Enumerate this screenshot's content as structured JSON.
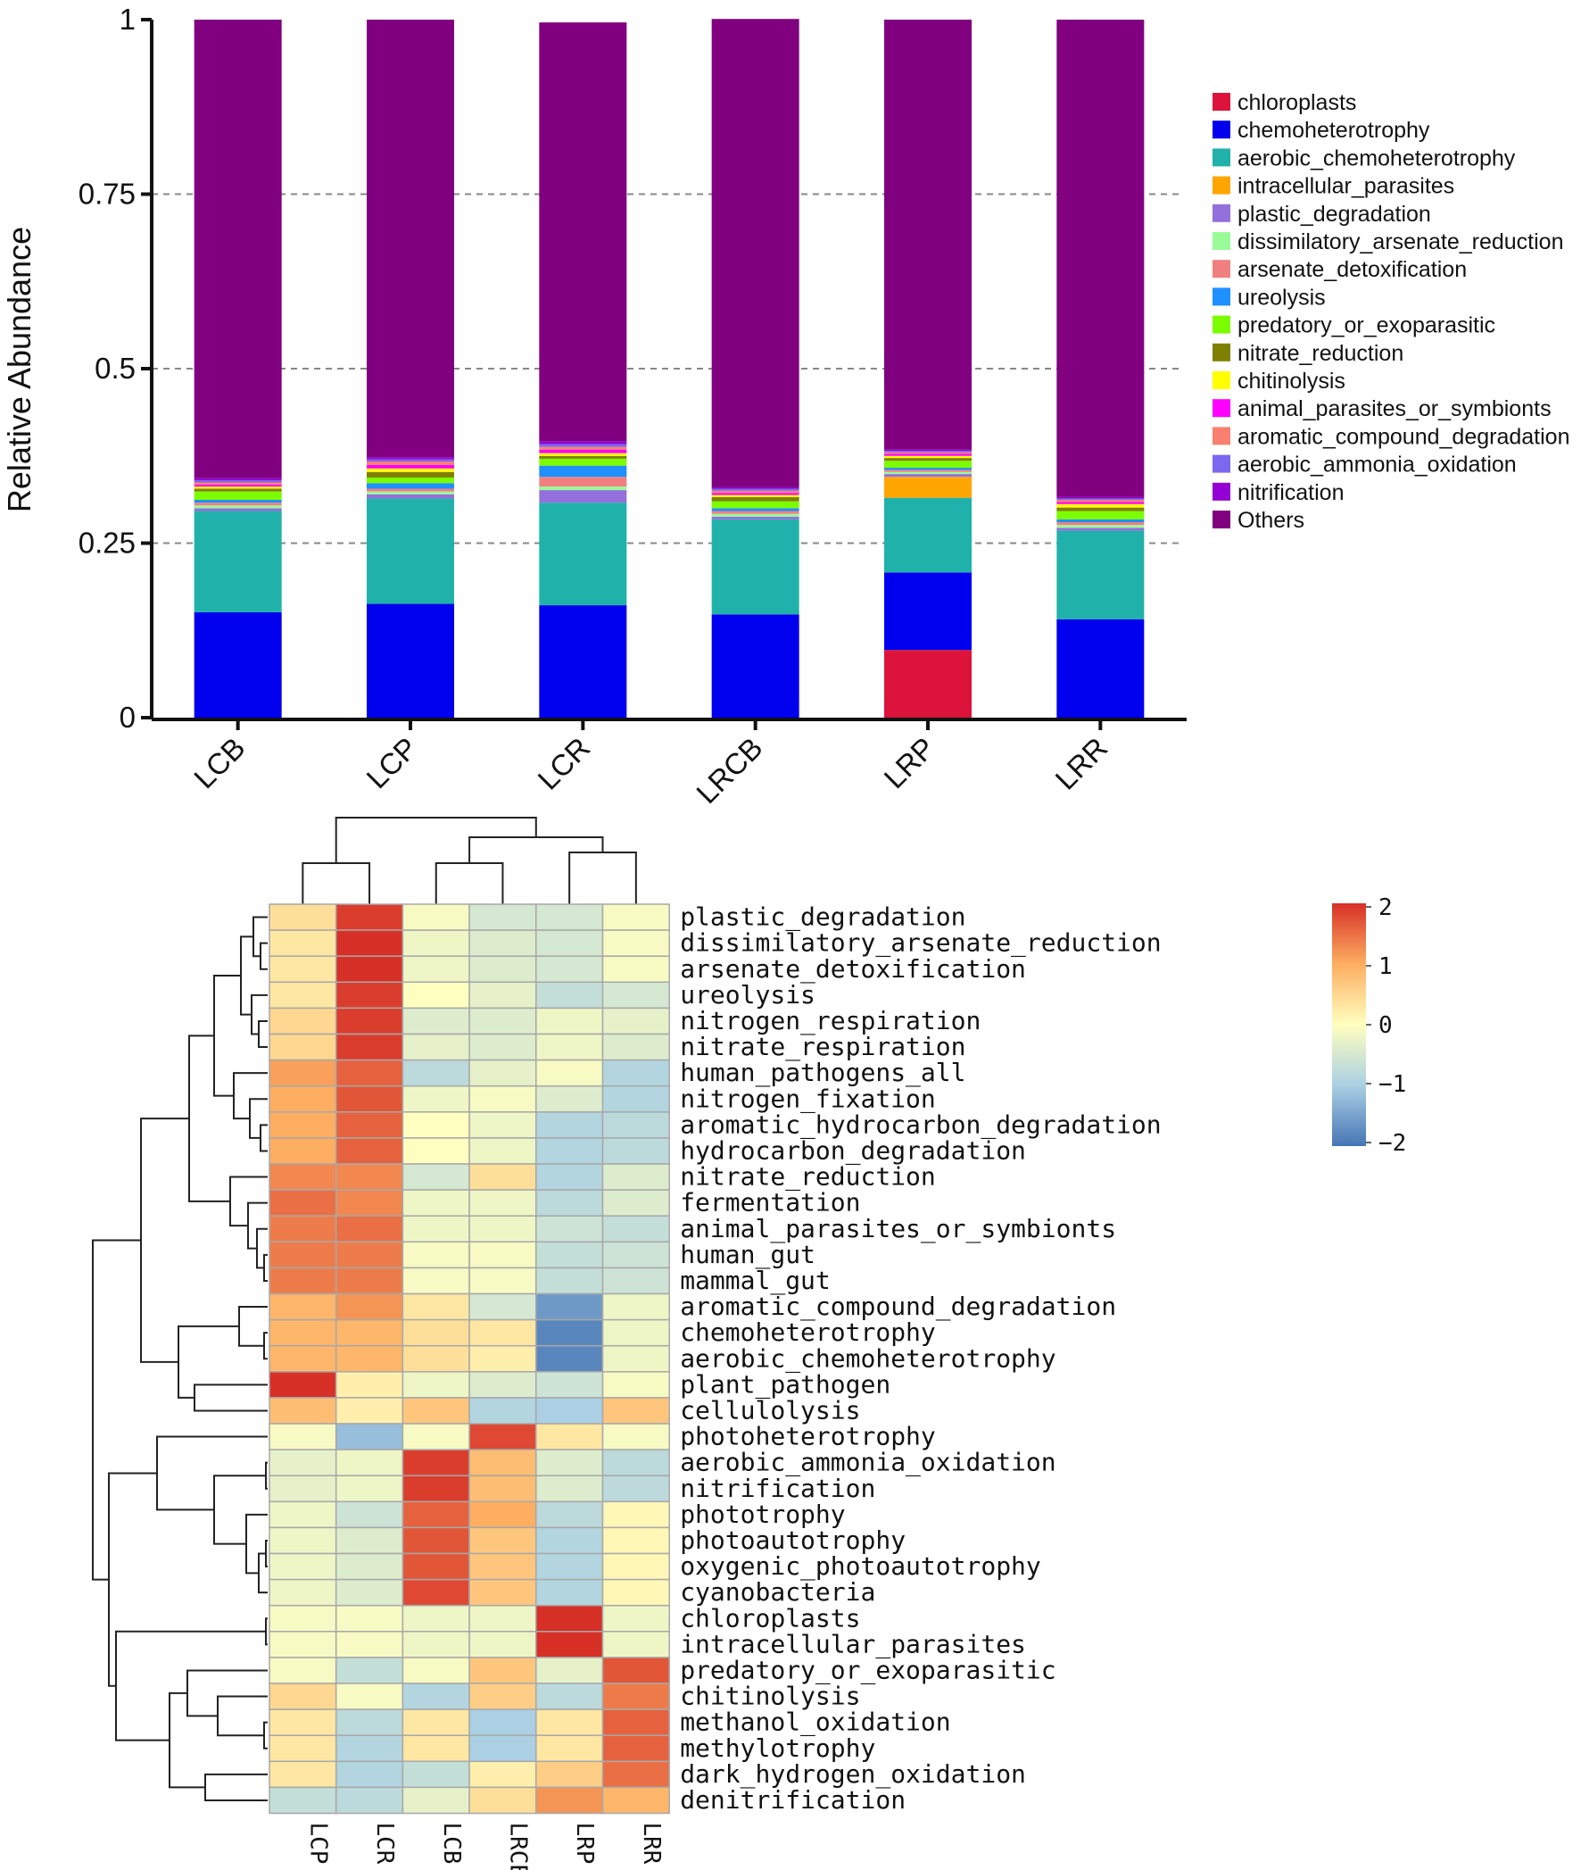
{
  "chart_data": [
    {
      "type": "bar",
      "stacked": true,
      "ylabel": "Relative Abundance",
      "ylim": [
        0,
        1
      ],
      "yticks": [
        "0",
        "0.25",
        "0.5",
        "0.75",
        "1"
      ],
      "grid": "dashed horizontal",
      "legend_position": "right",
      "categories": [
        "LCB",
        "LCP",
        "LCR",
        "LRCB",
        "LRP",
        "LRR"
      ],
      "series": [
        {
          "name": "chloroplasts",
          "color": "#dc143c",
          "values": [
            0.0,
            0.0,
            0.0,
            0.0,
            0.097,
            0.0
          ]
        },
        {
          "name": "chemoheterotrophy",
          "color": "#0000ee",
          "values": [
            0.151,
            0.163,
            0.161,
            0.148,
            0.111,
            0.141
          ]
        },
        {
          "name": "aerobic_chemoheterotrophy",
          "color": "#20b2aa",
          "values": [
            0.145,
            0.151,
            0.147,
            0.136,
            0.107,
            0.127
          ]
        },
        {
          "name": "intracellular_parasites",
          "color": "#ffa500",
          "values": [
            0.0,
            0.0,
            0.0,
            0.0,
            0.03,
            0.0
          ]
        },
        {
          "name": "plastic_degradation",
          "color": "#9370db",
          "values": [
            0.004,
            0.006,
            0.018,
            0.004,
            0.004,
            0.004
          ]
        },
        {
          "name": "dissimilatory_arsenate_reduction",
          "color": "#98fb98",
          "values": [
            0.004,
            0.004,
            0.005,
            0.004,
            0.003,
            0.004
          ]
        },
        {
          "name": "arsenate_detoxification",
          "color": "#f08080",
          "values": [
            0.004,
            0.004,
            0.014,
            0.004,
            0.003,
            0.004
          ]
        },
        {
          "name": "ureolysis",
          "color": "#1e90ff",
          "values": [
            0.004,
            0.008,
            0.016,
            0.004,
            0.003,
            0.004
          ]
        },
        {
          "name": "predatory_or_exoparasitic",
          "color": "#7cfc00",
          "values": [
            0.012,
            0.008,
            0.01,
            0.01,
            0.01,
            0.012
          ]
        },
        {
          "name": "nitrate_reduction",
          "color": "#808000",
          "values": [
            0.004,
            0.008,
            0.004,
            0.006,
            0.004,
            0.005
          ]
        },
        {
          "name": "chitinolysis",
          "color": "#ffff00",
          "values": [
            0.003,
            0.005,
            0.004,
            0.003,
            0.003,
            0.005
          ]
        },
        {
          "name": "animal_parasites_or_symbionts",
          "color": "#ff00ff",
          "values": [
            0.003,
            0.005,
            0.005,
            0.003,
            0.003,
            0.003
          ]
        },
        {
          "name": "aromatic_compound_degradation",
          "color": "#fa8072",
          "values": [
            0.003,
            0.005,
            0.004,
            0.003,
            0.002,
            0.003
          ]
        },
        {
          "name": "aerobic_ammonia_oxidation",
          "color": "#7b68ee",
          "values": [
            0.003,
            0.003,
            0.004,
            0.003,
            0.002,
            0.002
          ]
        },
        {
          "name": "nitrification",
          "color": "#9400d3",
          "values": [
            0.003,
            0.003,
            0.004,
            0.002,
            0.002,
            0.002
          ]
        },
        {
          "name": "Others",
          "color": "#800080",
          "values": [
            0.657,
            0.627,
            0.6,
            0.671,
            0.616,
            0.684
          ]
        }
      ]
    },
    {
      "type": "heatmap",
      "columns": [
        "LCP",
        "LCR",
        "LCB",
        "LRCB",
        "LRP",
        "LRR"
      ],
      "scale": {
        "min": -2,
        "max": 2,
        "ticks": [
          "2",
          "1",
          "0",
          "−1",
          "−2"
        ]
      },
      "rows": [
        {
          "name": "plastic_degradation",
          "values": [
            0.4,
            1.9,
            -0.1,
            -0.5,
            -0.5,
            -0.1
          ]
        },
        {
          "name": "dissimilatory_arsenate_reduction",
          "values": [
            0.3,
            2.0,
            -0.2,
            -0.4,
            -0.5,
            -0.1
          ]
        },
        {
          "name": "arsenate_detoxification",
          "values": [
            0.3,
            2.0,
            -0.2,
            -0.4,
            -0.5,
            -0.1
          ]
        },
        {
          "name": "ureolysis",
          "values": [
            0.3,
            1.9,
            0.0,
            -0.3,
            -0.7,
            -0.5
          ]
        },
        {
          "name": "nitrogen_respiration",
          "values": [
            0.5,
            1.9,
            -0.4,
            -0.4,
            -0.2,
            -0.3
          ]
        },
        {
          "name": "nitrate_respiration",
          "values": [
            0.5,
            1.9,
            -0.3,
            -0.4,
            -0.2,
            -0.4
          ]
        },
        {
          "name": "human_pathogens_all",
          "values": [
            1.1,
            1.6,
            -0.8,
            -0.3,
            -0.1,
            -0.9
          ]
        },
        {
          "name": "nitrogen_fixation",
          "values": [
            1.0,
            1.7,
            -0.2,
            -0.1,
            -0.4,
            -0.9
          ]
        },
        {
          "name": "aromatic_hydrocarbon_degradation",
          "values": [
            1.0,
            1.6,
            0.0,
            -0.2,
            -0.9,
            -0.8
          ]
        },
        {
          "name": "hydrocarbon_degradation",
          "values": [
            1.0,
            1.6,
            0.0,
            -0.2,
            -0.9,
            -0.8
          ]
        },
        {
          "name": "nitrate_reduction",
          "values": [
            1.3,
            1.3,
            -0.5,
            0.4,
            -0.9,
            -0.4
          ]
        },
        {
          "name": "fermentation",
          "values": [
            1.5,
            1.3,
            -0.2,
            -0.2,
            -0.8,
            -0.4
          ]
        },
        {
          "name": "animal_parasites_or_symbionts",
          "values": [
            1.4,
            1.5,
            -0.2,
            -0.2,
            -0.6,
            -0.7
          ]
        },
        {
          "name": "human_gut",
          "values": [
            1.4,
            1.4,
            -0.1,
            -0.1,
            -0.7,
            -0.6
          ]
        },
        {
          "name": "mammal_gut",
          "values": [
            1.4,
            1.4,
            -0.1,
            -0.1,
            -0.7,
            -0.6
          ]
        },
        {
          "name": "aromatic_compound_degradation",
          "values": [
            0.9,
            1.2,
            0.3,
            -0.5,
            -1.6,
            -0.2
          ]
        },
        {
          "name": "chemoheterotrophy",
          "values": [
            0.9,
            0.9,
            0.4,
            0.3,
            -1.8,
            -0.2
          ]
        },
        {
          "name": "aerobic_chemoheterotrophy",
          "values": [
            0.9,
            0.9,
            0.4,
            0.2,
            -1.8,
            -0.2
          ]
        },
        {
          "name": "plant_pathogen",
          "values": [
            2.0,
            0.2,
            -0.2,
            -0.4,
            -0.6,
            -0.1
          ]
        },
        {
          "name": "cellulolysis",
          "values": [
            0.8,
            0.2,
            0.7,
            -0.9,
            -1.0,
            0.7
          ]
        },
        {
          "name": "photoheterotrophy",
          "values": [
            -0.1,
            -1.2,
            -0.1,
            1.8,
            0.3,
            -0.1
          ]
        },
        {
          "name": "aerobic_ammonia_oxidation",
          "values": [
            -0.3,
            -0.2,
            1.9,
            0.8,
            -0.4,
            -0.8
          ]
        },
        {
          "name": "nitrification",
          "values": [
            -0.3,
            -0.2,
            1.9,
            0.8,
            -0.4,
            -0.8
          ]
        },
        {
          "name": "phototrophy",
          "values": [
            -0.2,
            -0.6,
            1.6,
            1.0,
            -0.8,
            0.1
          ]
        },
        {
          "name": "photoautotrophy",
          "values": [
            -0.2,
            -0.4,
            1.7,
            0.7,
            -0.9,
            0.1
          ]
        },
        {
          "name": "oxygenic_photoautotrophy",
          "values": [
            -0.2,
            -0.4,
            1.7,
            0.7,
            -0.9,
            0.1
          ]
        },
        {
          "name": "cyanobacteria",
          "values": [
            -0.2,
            -0.4,
            1.8,
            0.7,
            -0.9,
            0.1
          ]
        },
        {
          "name": "chloroplasts",
          "values": [
            -0.1,
            -0.1,
            -0.2,
            -0.2,
            2.0,
            -0.2
          ]
        },
        {
          "name": "intracellular_parasites",
          "values": [
            -0.1,
            -0.1,
            -0.2,
            -0.2,
            2.0,
            -0.2
          ]
        },
        {
          "name": "predatory_or_exoparasitic",
          "values": [
            -0.1,
            -0.7,
            -0.1,
            0.7,
            -0.3,
            1.7
          ]
        },
        {
          "name": "chitinolysis",
          "values": [
            0.5,
            -0.1,
            -0.9,
            0.6,
            -0.8,
            1.4
          ]
        },
        {
          "name": "methanol_oxidation",
          "values": [
            0.3,
            -0.8,
            0.3,
            -1.0,
            0.3,
            1.6
          ]
        },
        {
          "name": "methylotrophy",
          "values": [
            0.3,
            -0.9,
            0.3,
            -1.0,
            0.3,
            1.6
          ]
        },
        {
          "name": "dark_hydrogen_oxidation",
          "values": [
            0.3,
            -0.9,
            -0.7,
            0.2,
            0.6,
            1.5
          ]
        },
        {
          "name": "denitrification",
          "values": [
            -0.7,
            -0.8,
            -0.3,
            0.4,
            1.2,
            0.9
          ]
        }
      ]
    }
  ]
}
